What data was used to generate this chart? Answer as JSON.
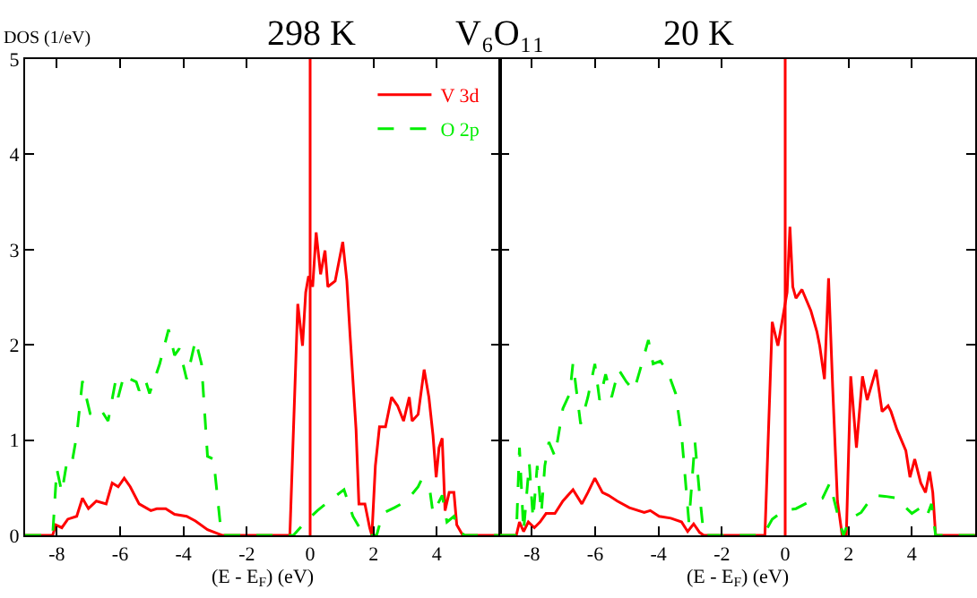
{
  "chart_data": [
    {
      "type": "line",
      "title": "298 K",
      "ylabel": "DOS (1/eV)",
      "xlabel": "(E - E$_{F}$) (eV)",
      "annotations": [
        "V₆O₁₁"
      ],
      "xlim": [
        -9,
        6
      ],
      "xticks": [
        -8,
        -6,
        -4,
        -2,
        0,
        2,
        4
      ],
      "ylim": [
        0,
        5
      ],
      "yticks": [
        0,
        1,
        2,
        3,
        4,
        5
      ],
      "legend": "top right",
      "ref_lines": [
        {
          "axis": "x",
          "value": 0,
          "color": "#ff0000"
        }
      ],
      "series": [
        {
          "name": "V 3d",
          "color": "#ff0000",
          "line_style": "solid",
          "x": [
            -9,
            -8.13,
            -8.03,
            -7.84,
            -7.65,
            -7.37,
            -7.19,
            -7.0,
            -6.75,
            -6.44,
            -6.25,
            -6.06,
            -5.87,
            -5.68,
            -5.4,
            -5.03,
            -4.84,
            -4.56,
            -4.28,
            -3.9,
            -3.62,
            -3.24,
            -2.93,
            -2.78,
            -0.64,
            -0.39,
            -0.24,
            -0.14,
            -0.05,
            0.08,
            0.19,
            0.33,
            0.47,
            0.56,
            0.79,
            1.03,
            1.16,
            1.26,
            1.45,
            1.54,
            1.73,
            1.88,
            1.95,
            2.06,
            2.19,
            2.38,
            2.57,
            2.76,
            2.95,
            3.13,
            3.22,
            3.41,
            3.6,
            3.75,
            3.88,
            3.98,
            4.07,
            4.17,
            4.26,
            4.39,
            4.54,
            4.63,
            4.82,
            6
          ],
          "values": [
            0,
            0,
            0.11,
            0.08,
            0.17,
            0.2,
            0.39,
            0.28,
            0.36,
            0.33,
            0.55,
            0.51,
            0.6,
            0.51,
            0.33,
            0.26,
            0.28,
            0.28,
            0.22,
            0.2,
            0.15,
            0.06,
            0.02,
            0,
            0,
            2.43,
            1.99,
            2.55,
            2.72,
            2.61,
            3.18,
            2.74,
            2.99,
            2.61,
            2.67,
            3.08,
            2.67,
            2.11,
            1.11,
            0.33,
            0.33,
            0.08,
            0,
            0.73,
            1.14,
            1.14,
            1.45,
            1.36,
            1.2,
            1.45,
            1.2,
            1.27,
            1.74,
            1.45,
            1.05,
            0.61,
            0.92,
            1.02,
            0.26,
            0.45,
            0.45,
            0.11,
            0,
            0
          ]
        },
        {
          "name": "O 2p",
          "color": "#00ee00",
          "line_style": "dashed",
          "x": [
            -9,
            -8.13,
            -8.0,
            -7.84,
            -7.65,
            -7.5,
            -7.37,
            -7.19,
            -6.94,
            -6.75,
            -6.57,
            -6.38,
            -6.15,
            -6.06,
            -5.87,
            -5.68,
            -5.49,
            -5.4,
            -5.21,
            -5.07,
            -4.88,
            -4.75,
            -4.47,
            -4.28,
            -4.13,
            -3.9,
            -3.62,
            -3.43,
            -3.24,
            -3.05,
            -2.8,
            -0.53,
            -0.15,
            0.23,
            0.6,
            1.07,
            1.35,
            1.63,
            1.82,
            2.1,
            2.29,
            2.66,
            3.04,
            3.41,
            3.51,
            3.79,
            3.88,
            4.17,
            4.32,
            4.54,
            4.73,
            4.88,
            6
          ],
          "values": [
            0,
            0,
            0.7,
            0.45,
            0.83,
            0.8,
            1.05,
            1.62,
            1.27,
            1.33,
            1.3,
            1.2,
            1.61,
            1.45,
            1.69,
            1.64,
            1.61,
            1.52,
            1.64,
            1.49,
            1.67,
            1.8,
            2.16,
            1.89,
            1.96,
            1.64,
            2.05,
            1.8,
            0.83,
            0.8,
            0,
            0,
            0.14,
            0.26,
            0.36,
            0.48,
            0.2,
            0.04,
            0,
            0,
            0.23,
            0.29,
            0.36,
            0.51,
            0.58,
            0.45,
            0.23,
            0.42,
            0.14,
            0.2,
            0.04,
            0,
            0
          ]
        }
      ]
    },
    {
      "type": "line",
      "title": "20 K",
      "xlabel": "(E - E$_{F}$) (eV)",
      "tick_labels": "x",
      "xlim": [
        -9,
        6
      ],
      "xticks": [
        -8,
        -6,
        -4,
        -2,
        0,
        2,
        4
      ],
      "ylim": [
        0,
        5
      ],
      "yticks": [
        0,
        1,
        2,
        3,
        4,
        5
      ],
      "ref_lines": [
        {
          "axis": "x",
          "value": 0,
          "color": "#ff0000"
        }
      ],
      "series": [
        {
          "color": "#ff0000",
          "line_style": "solid",
          "x": [
            -9,
            -8.49,
            -8.39,
            -8.26,
            -8.11,
            -7.92,
            -7.74,
            -7.55,
            -7.27,
            -7.02,
            -6.7,
            -6.42,
            -6.23,
            -6.01,
            -5.77,
            -5.58,
            -5.3,
            -4.92,
            -4.45,
            -4.26,
            -3.98,
            -3.61,
            -3.27,
            -3.08,
            -2.89,
            -2.7,
            -2.57,
            -0.64,
            -0.41,
            -0.23,
            0.06,
            0.15,
            0.24,
            0.34,
            0.53,
            0.81,
            1.0,
            1.09,
            1.24,
            1.37,
            1.5,
            1.65,
            1.8,
            1.93,
            2.07,
            2.25,
            2.44,
            2.59,
            2.87,
            3.06,
            3.25,
            3.34,
            3.53,
            3.81,
            3.94,
            4.09,
            4.28,
            4.43,
            4.56,
            4.66,
            4.75,
            6
          ],
          "values": [
            0,
            0,
            0.14,
            0.04,
            0.14,
            0.08,
            0.14,
            0.23,
            0.23,
            0.36,
            0.48,
            0.33,
            0.45,
            0.6,
            0.45,
            0.42,
            0.36,
            0.29,
            0.24,
            0.26,
            0.2,
            0.18,
            0.14,
            0.04,
            0.12,
            0.03,
            0,
            0,
            2.24,
            1.99,
            2.55,
            3.24,
            2.61,
            2.49,
            2.58,
            2.36,
            2.14,
            1.99,
            1.64,
            2.7,
            1.55,
            0.36,
            0,
            0,
            1.67,
            0.92,
            1.67,
            1.42,
            1.74,
            1.3,
            1.36,
            1.3,
            1.11,
            0.89,
            0.61,
            0.8,
            0.55,
            0.45,
            0.67,
            0.45,
            0,
            0
          ]
        },
        {
          "color": "#00ee00",
          "line_style": "dashed",
          "x": [
            -9,
            -8.49,
            -8.39,
            -8.26,
            -8.08,
            -7.96,
            -7.83,
            -7.7,
            -7.59,
            -7.46,
            -7.27,
            -7.02,
            -6.8,
            -6.7,
            -6.46,
            -6.23,
            -6.01,
            -5.86,
            -5.67,
            -5.48,
            -5.26,
            -5.01,
            -4.77,
            -4.58,
            -4.32,
            -4.17,
            -3.94,
            -3.7,
            -3.46,
            -3.27,
            -3.04,
            -2.85,
            -2.7,
            -2.57,
            -0.69,
            -0.41,
            -0.04,
            0.34,
            0.81,
            1.18,
            1.41,
            1.65,
            1.84,
            2.03,
            2.4,
            2.78,
            3.15,
            3.53,
            3.81,
            4.0,
            4.28,
            4.47,
            4.62,
            4.75,
            6
          ],
          "values": [
            0,
            0,
            0.92,
            0.04,
            0.76,
            0.17,
            0.73,
            0.23,
            0.73,
            0.98,
            0.83,
            1.33,
            1.49,
            1.81,
            1.17,
            1.45,
            1.8,
            1.42,
            1.69,
            1.45,
            1.74,
            1.61,
            1.52,
            1.74,
            2.05,
            1.8,
            1.83,
            1.71,
            1.49,
            1.05,
            0.14,
            0.98,
            0.42,
            0,
            0,
            0.17,
            0.26,
            0.28,
            0.36,
            0.39,
            0.55,
            0.23,
            0,
            0.17,
            0.24,
            0.42,
            0.41,
            0.39,
            0.29,
            0.23,
            0.29,
            0.2,
            0.33,
            0,
            0
          ]
        }
      ]
    }
  ]
}
